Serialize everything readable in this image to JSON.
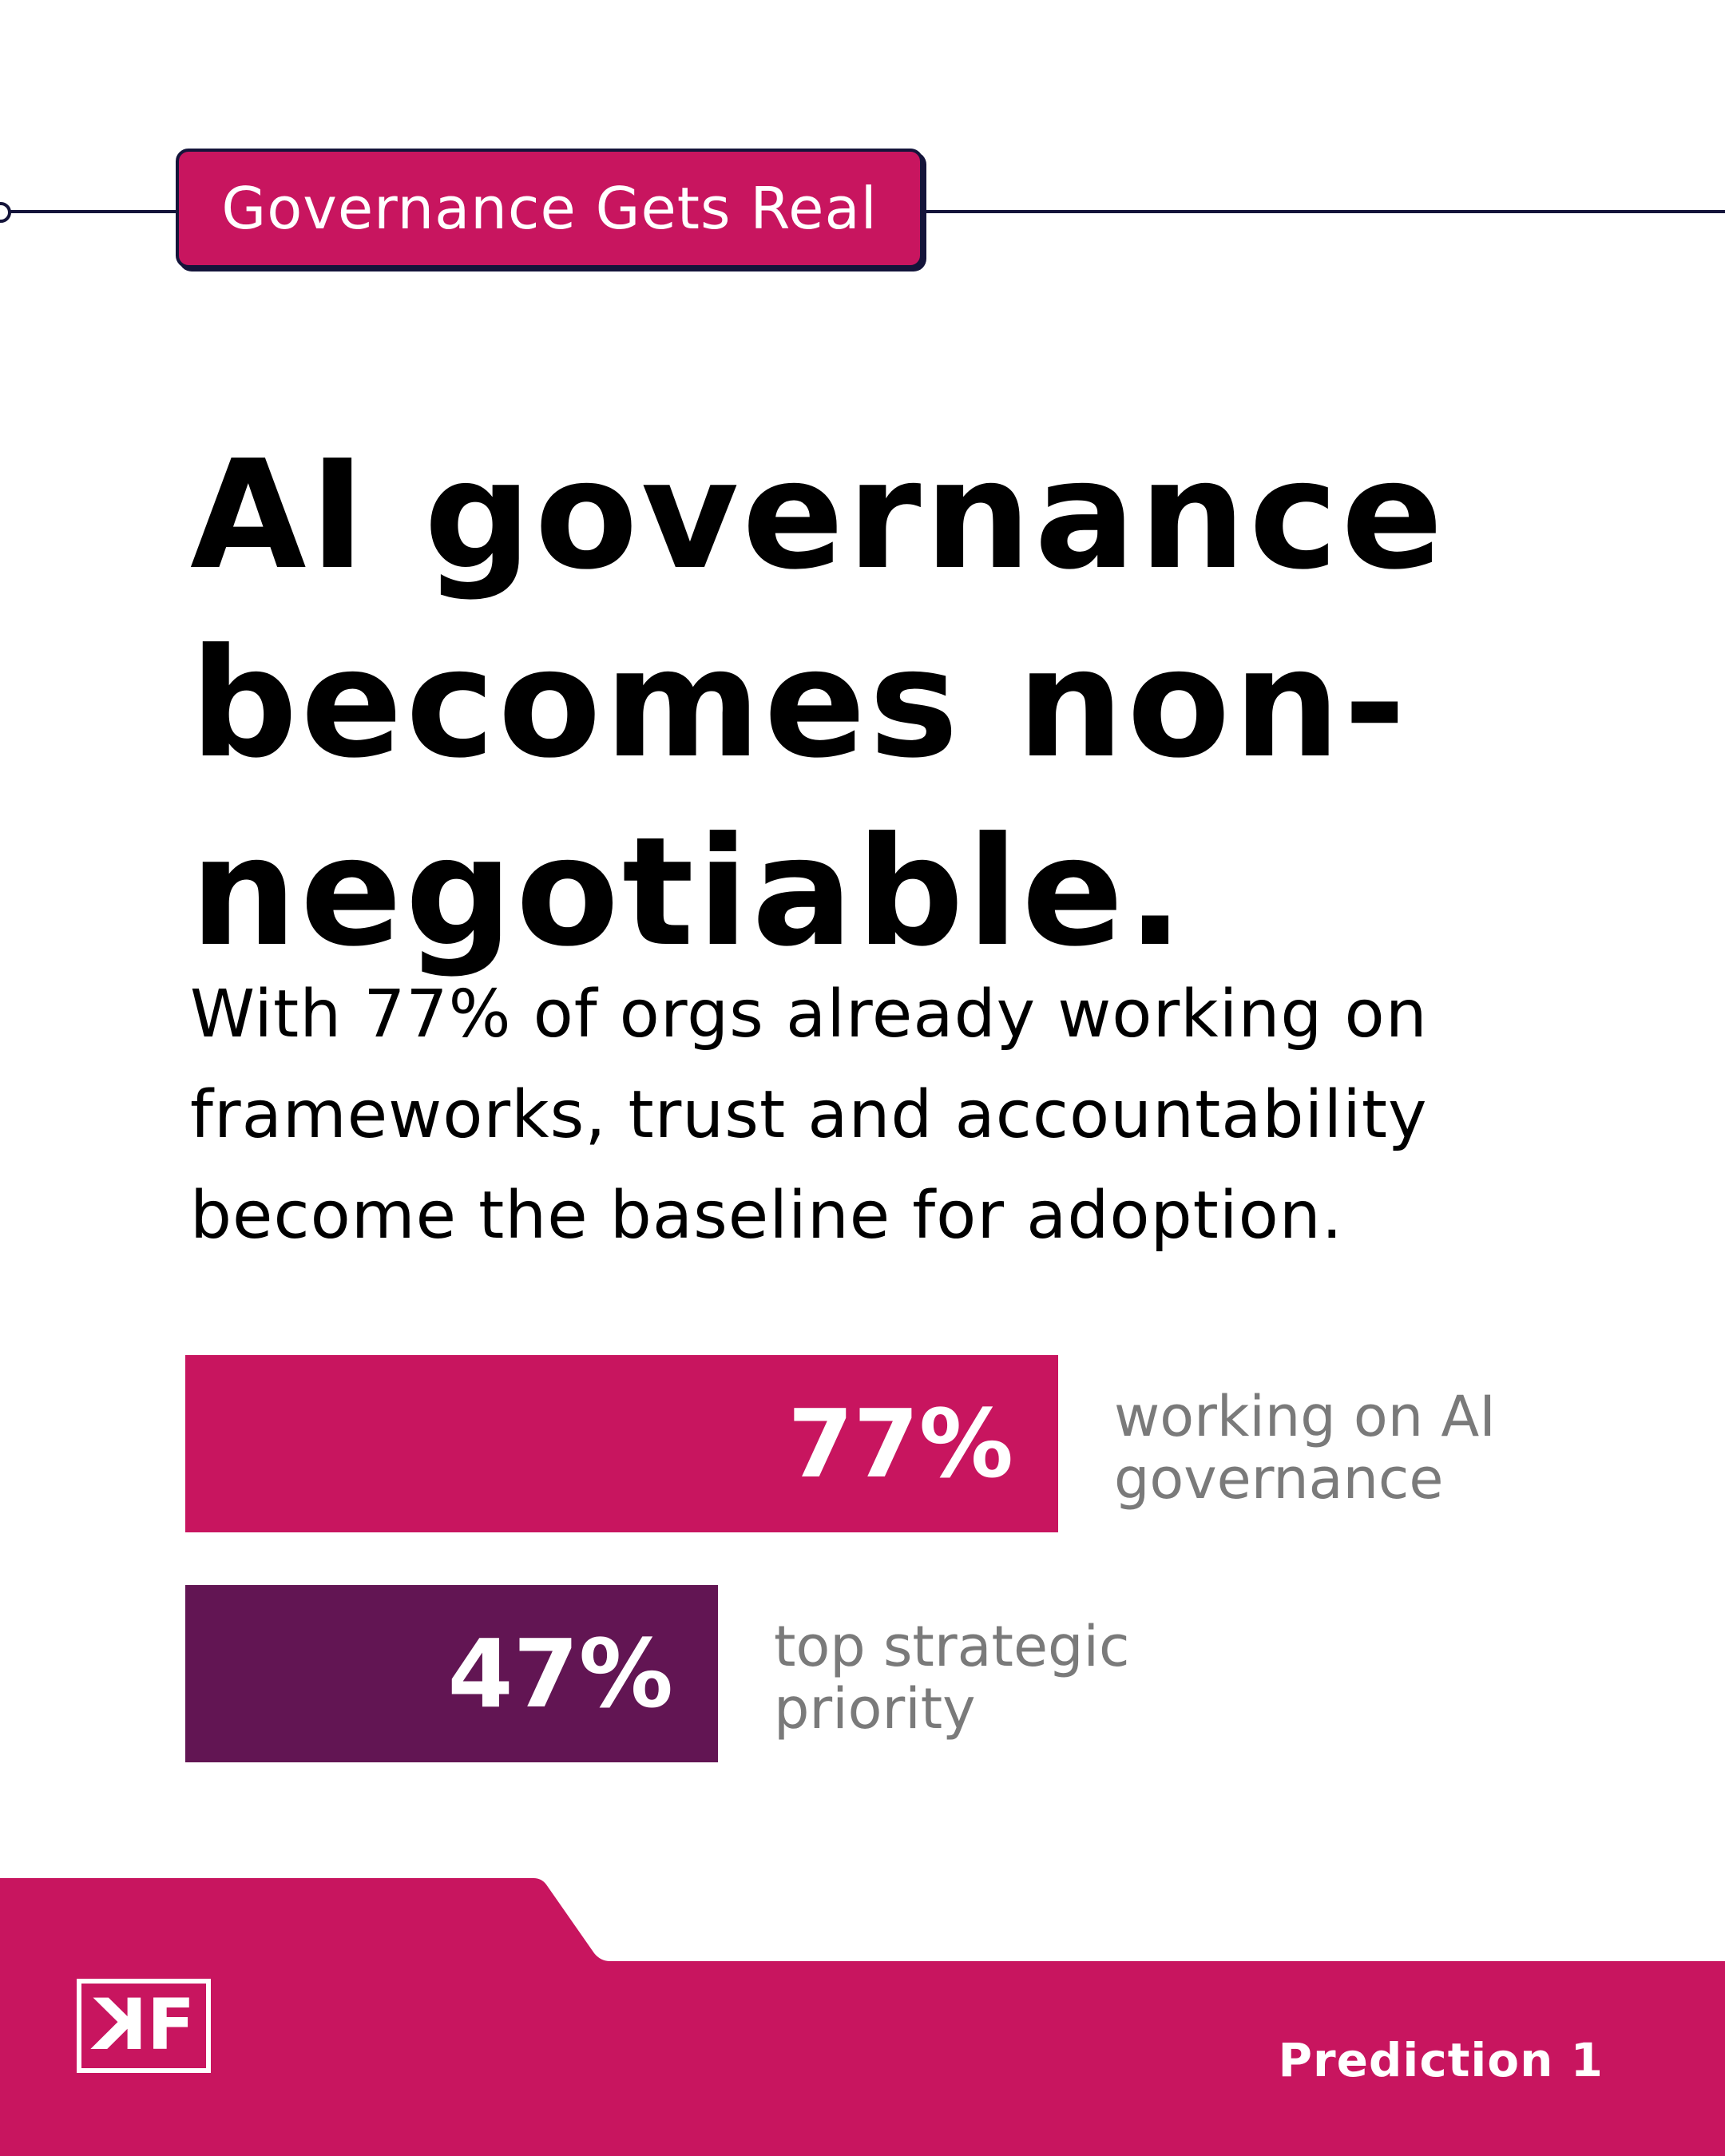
{
  "tag": {
    "label": "Governance Gets Real"
  },
  "headline": {
    "lines": [
      "AI governance",
      "becomes non-",
      "negotiable."
    ]
  },
  "subtext": {
    "lines": [
      "With 77% of orgs already working on",
      "frameworks, trust and accountability",
      "become the baseline for adoption."
    ]
  },
  "chart_data": {
    "type": "bar",
    "orientation": "horizontal",
    "categories": [
      "working on AI governance",
      "top strategic priority"
    ],
    "values": [
      77,
      47
    ],
    "value_labels": [
      "77%",
      "47%"
    ],
    "label_lines": [
      [
        "working on AI",
        "governance"
      ],
      [
        "top strategic",
        "priority"
      ]
    ],
    "colors": [
      "#c8155f",
      "#621553"
    ],
    "xlim": [
      0,
      100
    ]
  },
  "footer": {
    "logo_letters": [
      "K",
      "F"
    ],
    "prediction": "Prediction 1"
  },
  "colors": {
    "accent": "#c8155f",
    "dark_accent": "#621553",
    "rule": "#14143a",
    "label_gray": "#7a7a7a"
  }
}
